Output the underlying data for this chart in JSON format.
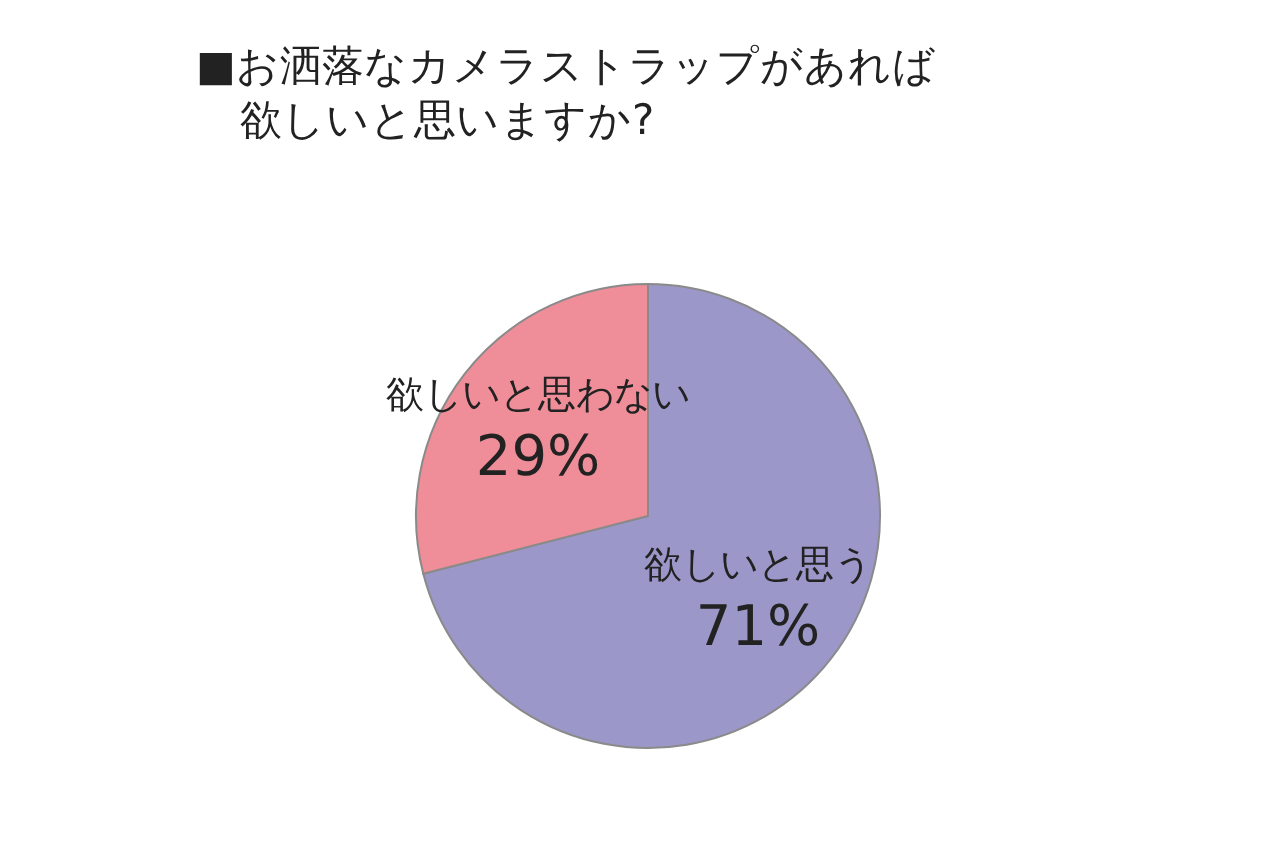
{
  "chart_data": {
    "type": "pie",
    "title": "■お洒落なカメラストラップがあれば欲しいと思いますか?",
    "categories": [
      "欲しいと思う",
      "欲しいと思わない"
    ],
    "values": [
      71,
      29
    ],
    "value_labels": [
      "71%",
      "29%"
    ],
    "colors": [
      "#9b97c9",
      "#ef8e98"
    ]
  }
}
